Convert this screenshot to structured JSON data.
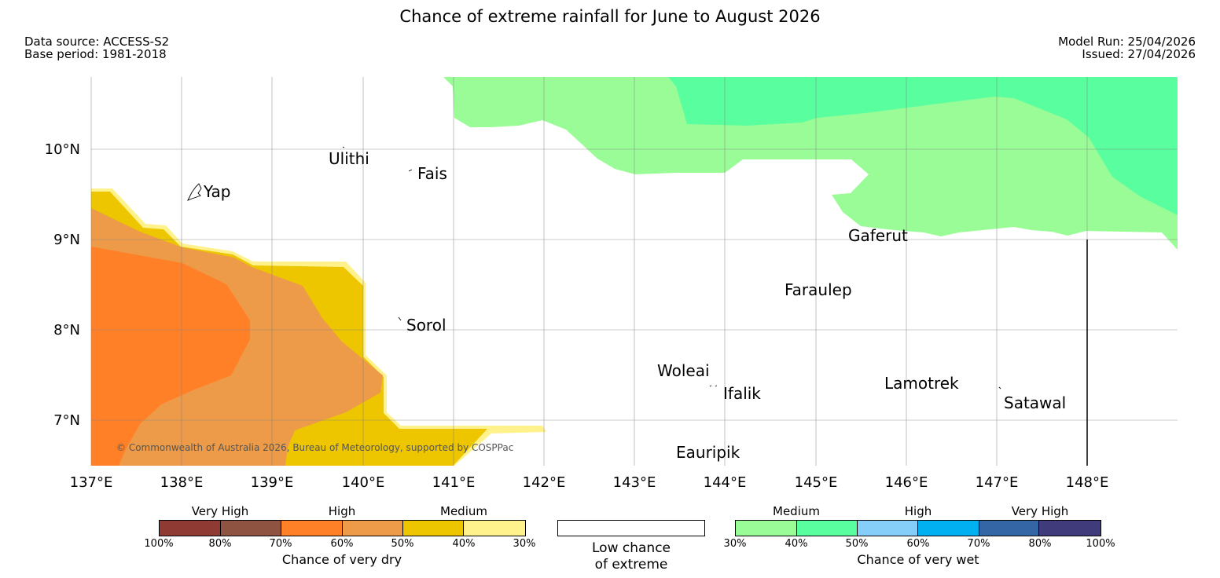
{
  "title": "Chance of extreme rainfall for June to August 2026",
  "meta": {
    "data_source": "Data source: ACCESS-S2",
    "base_period": "Base period: 1981-2018",
    "model_run": "Model Run: 25/04/2026",
    "issued": "Issued: 27/04/2026"
  },
  "map": {
    "lon_range": [
      137,
      149
    ],
    "lat_range": [
      6.5,
      10.8
    ],
    "lon_labels": [
      "137°E",
      "138°E",
      "139°E",
      "140°E",
      "141°E",
      "142°E",
      "143°E",
      "144°E",
      "145°E",
      "146°E",
      "147°E",
      "148°E"
    ],
    "lat_labels": [
      "10°N",
      "9°N",
      "8°N",
      "7°N"
    ],
    "copyright": "© Commonwealth of Australia 2026, Bureau of Meteorology, supported by COSPPac",
    "places": {
      "yap": "Yap",
      "ulithi": "Ulithi",
      "fais": "Fais",
      "sorol": "Sorol",
      "gaferut": "Gaferut",
      "faraulep": "Faraulep",
      "woleai": "Woleai",
      "ifalik": "Ifalik",
      "lamotrek": "Lamotrek",
      "satawal": "Satawal",
      "eauripik": "Eauripik"
    }
  },
  "legend_dry": {
    "title": "Chance of very dry",
    "categories": [
      "Very High",
      "High",
      "Medium"
    ],
    "ticks": [
      "100%",
      "80%",
      "70%",
      "60%",
      "50%",
      "40%",
      "30%"
    ],
    "colors": [
      "#8f3b33",
      "#8f5341",
      "#ff8026",
      "#ed9b48",
      "#edc600",
      "#fff28d"
    ]
  },
  "legend_low": {
    "line1": "Low chance",
    "line2": "of extreme"
  },
  "legend_wet": {
    "title": "Chance of very wet",
    "categories": [
      "Medium",
      "High",
      "Very High"
    ],
    "ticks": [
      "30%",
      "40%",
      "50%",
      "60%",
      "70%",
      "80%",
      "100%"
    ],
    "colors": [
      "#9afc96",
      "#59fe9f",
      "#86cefa",
      "#00b0f0",
      "#3465a5",
      "#403c7c"
    ]
  }
}
